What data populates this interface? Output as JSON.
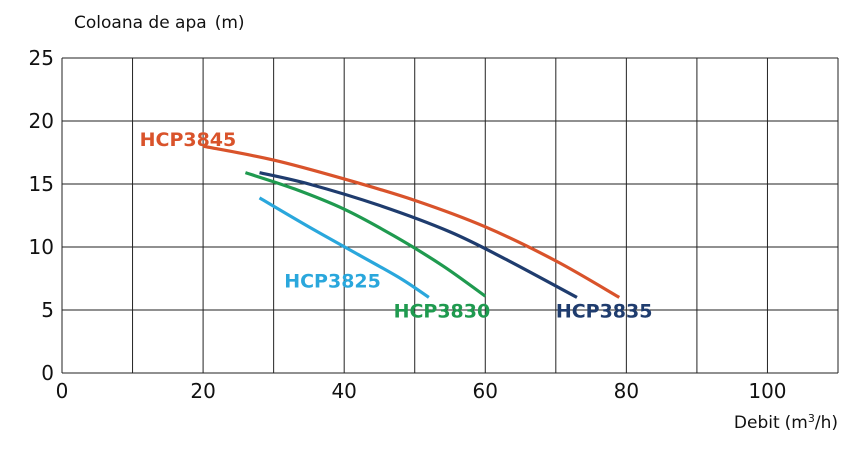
{
  "chart_data": {
    "type": "line",
    "ylabel": "Coloana de apa",
    "ylabel_unit": "(m)",
    "xlabel": "Debit",
    "xlabel_unit_pre": "(m",
    "xlabel_unit_sup": "3",
    "xlabel_unit_post": "/h)",
    "xlim": [
      0,
      110
    ],
    "ylim": [
      0,
      25
    ],
    "x_ticks": [
      0,
      20,
      40,
      60,
      80,
      100
    ],
    "y_ticks": [
      0,
      5,
      10,
      15,
      20,
      25
    ],
    "x_tick_labels": [
      "0",
      "20",
      "40",
      "60",
      "80",
      "100"
    ],
    "y_tick_labels": [
      "0",
      "5",
      "10",
      "15",
      "20",
      "25"
    ],
    "grid": true,
    "series": [
      {
        "name": "HCP3845",
        "color": "#d9532b",
        "label_at": [
          11,
          18
        ],
        "points": [
          [
            20,
            18.0
          ],
          [
            30,
            16.9
          ],
          [
            40,
            15.4
          ],
          [
            50,
            13.7
          ],
          [
            60,
            11.6
          ],
          [
            70,
            8.9
          ],
          [
            79,
            6.0
          ]
        ]
      },
      {
        "name": "HCP3835",
        "color": "#1f3c6e",
        "label_at": [
          70,
          4.4
        ],
        "points": [
          [
            28,
            15.9
          ],
          [
            35,
            15.0
          ],
          [
            45,
            13.3
          ],
          [
            55,
            11.2
          ],
          [
            63,
            9.0
          ],
          [
            73,
            6.0
          ]
        ]
      },
      {
        "name": "HCP3830",
        "color": "#1f9a4f",
        "label_at": [
          47,
          4.4
        ],
        "points": [
          [
            26,
            15.9
          ],
          [
            33,
            14.6
          ],
          [
            40,
            13.0
          ],
          [
            47,
            10.9
          ],
          [
            54,
            8.5
          ],
          [
            60,
            6.1
          ]
        ]
      },
      {
        "name": "HCP3825",
        "color": "#2aa7dc",
        "label_at": [
          31.5,
          6.8
        ],
        "points": [
          [
            28,
            13.9
          ],
          [
            35,
            11.6
          ],
          [
            42,
            9.4
          ],
          [
            48,
            7.5
          ],
          [
            52,
            6.0
          ]
        ]
      }
    ]
  }
}
